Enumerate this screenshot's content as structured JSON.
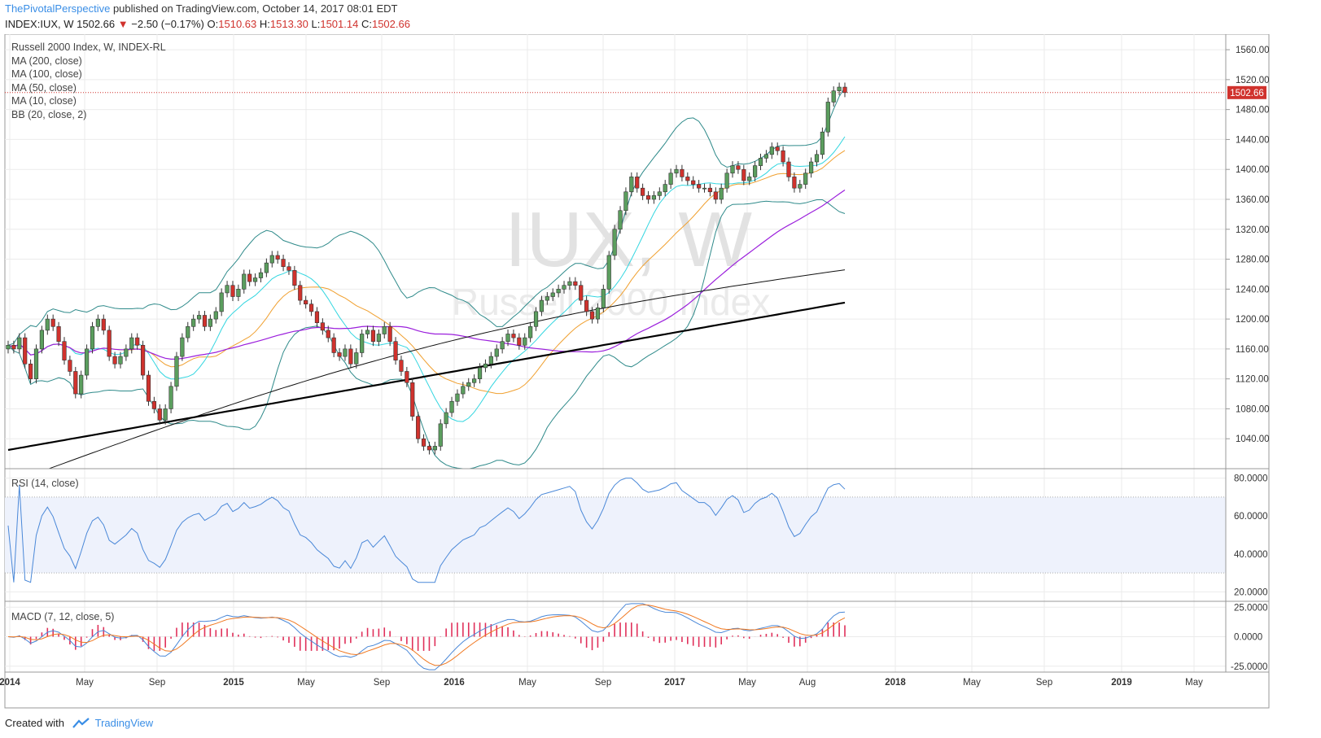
{
  "header": {
    "author": "ThePivotalPerspective",
    "published_text": " published on TradingView.com, October 14, 2017 08:01 EDT",
    "symbol": "INDEX:IUX, W",
    "last": "1502.66",
    "change_arrow": "▼",
    "change": "−2.50 (−0.17%)",
    "o_label": "O:",
    "o_value": "1510.63",
    "h_label": "H:",
    "h_value": "1513.30",
    "l_label": "L:",
    "l_value": "1501.14",
    "c_label": "C:",
    "c_value": "1502.66"
  },
  "legend": {
    "title": "Russell 2000 Index, W, INDEX-RL",
    "ma200": "MA (200, close)",
    "ma100": "MA (100, close)",
    "ma50": "MA (50, close)",
    "ma10": "MA (10, close)",
    "bb": "BB (20, close, 2)"
  },
  "watermark": {
    "symbol": "IUX, W",
    "name": "Russell 2000 Index"
  },
  "price_badge": "1502.66",
  "rsi_label": "RSI (14, close)",
  "macd_label": "MACD (7, 12, close, 5)",
  "footer": {
    "created_with": "Created with",
    "brand": "TradingView"
  },
  "colors": {
    "up": "#5b9e5e",
    "down": "#d0322d",
    "bb": "#2e8a8a",
    "ma10": "#33d6e0",
    "ma50": "#9b1fdc",
    "ma100": "#111111",
    "ma200": "#000000",
    "sma20": "#f0a030",
    "rsi": "#4a88d8",
    "macd": "#4a88d8",
    "signal": "#f07820",
    "hist": "#e0305a"
  },
  "chart_data": [
    {
      "type": "candlestick",
      "panel": "price",
      "y_range": [
        1010,
        1580
      ],
      "y_ticks": [
        1040,
        1080,
        1120,
        1160,
        1200,
        1240,
        1280,
        1320,
        1360,
        1400,
        1440,
        1480,
        1520,
        1560
      ],
      "x_labels": [
        "2014",
        "May",
        "Sep",
        "2015",
        "May",
        "Sep",
        "2016",
        "May",
        "Sep",
        "2017",
        "May",
        "Aug",
        "2018",
        "May",
        "Sep",
        "2019",
        "May"
      ],
      "last_price": 1502.66,
      "closes": [
        1165,
        1160,
        1175,
        1140,
        1120,
        1160,
        1185,
        1200,
        1190,
        1170,
        1145,
        1130,
        1100,
        1125,
        1160,
        1190,
        1200,
        1185,
        1150,
        1140,
        1150,
        1160,
        1175,
        1165,
        1125,
        1090,
        1080,
        1065,
        1080,
        1110,
        1150,
        1175,
        1190,
        1200,
        1205,
        1190,
        1200,
        1210,
        1235,
        1245,
        1230,
        1240,
        1260,
        1250,
        1255,
        1262,
        1275,
        1285,
        1280,
        1270,
        1265,
        1245,
        1225,
        1220,
        1210,
        1195,
        1185,
        1175,
        1155,
        1150,
        1160,
        1140,
        1155,
        1180,
        1185,
        1170,
        1180,
        1190,
        1170,
        1145,
        1130,
        1115,
        1070,
        1040,
        1030,
        1025,
        1030,
        1060,
        1075,
        1090,
        1100,
        1110,
        1115,
        1120,
        1135,
        1140,
        1150,
        1160,
        1170,
        1180,
        1175,
        1165,
        1175,
        1190,
        1210,
        1225,
        1230,
        1235,
        1240,
        1245,
        1250,
        1245,
        1225,
        1210,
        1200,
        1215,
        1240,
        1285,
        1320,
        1345,
        1370,
        1390,
        1375,
        1365,
        1360,
        1365,
        1370,
        1380,
        1395,
        1400,
        1390,
        1385,
        1380,
        1375,
        1375,
        1370,
        1360,
        1375,
        1395,
        1405,
        1400,
        1385,
        1390,
        1405,
        1415,
        1420,
        1430,
        1425,
        1410,
        1390,
        1375,
        1380,
        1395,
        1410,
        1420,
        1450,
        1490,
        1505,
        1510,
        1502.66
      ],
      "ma200_start_end": [
        980,
        1265
      ],
      "ma100_start_end": [
        1025,
        1222
      ]
    },
    {
      "type": "line",
      "panel": "rsi",
      "y_range": [
        15,
        85
      ],
      "y_ticks": [
        20,
        40,
        60,
        80
      ],
      "band": [
        30,
        70
      ]
    },
    {
      "type": "line+bar",
      "panel": "macd",
      "y_range": [
        -30,
        30
      ],
      "y_ticks": [
        -25,
        0,
        25
      ]
    }
  ]
}
